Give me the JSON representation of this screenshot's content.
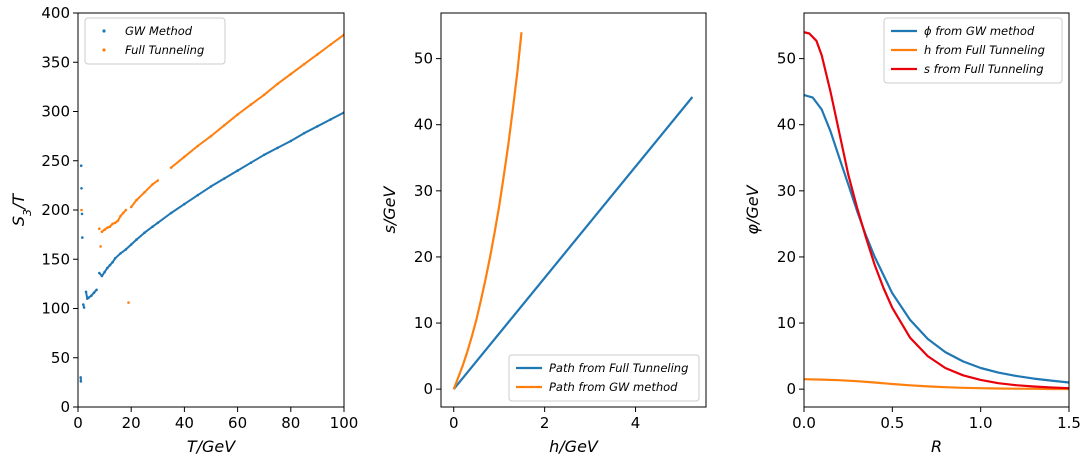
{
  "chart_data": [
    {
      "type": "scatter",
      "xlabel": "T/GeV",
      "ylabel": "S_3/T",
      "xlim": [
        0,
        100
      ],
      "ylim": [
        0,
        400
      ],
      "xticks": [
        0,
        20,
        40,
        60,
        80,
        100
      ],
      "yticks": [
        0,
        50,
        100,
        150,
        200,
        250,
        300,
        350,
        400
      ],
      "grid": false,
      "legend_position": "top-left",
      "series": [
        {
          "name": "GW Method",
          "color": "#1f77b4",
          "points": [
            [
              1.0,
              30
            ],
            [
              1.1,
              26
            ],
            [
              1.2,
              245
            ],
            [
              1.3,
              222
            ],
            [
              1.5,
              196
            ],
            [
              1.6,
              172
            ],
            [
              2.0,
              104
            ],
            [
              2.3,
              101
            ],
            [
              3.0,
              117
            ],
            [
              3.5,
              110
            ],
            [
              4.0,
              111
            ],
            [
              5.0,
              113
            ],
            [
              6.0,
              116
            ],
            [
              7.0,
              119
            ],
            [
              8.0,
              136
            ],
            [
              9.0,
              133
            ],
            [
              10.0,
              137
            ],
            [
              11.0,
              141
            ],
            [
              12.0,
              144
            ],
            [
              13.0,
              147
            ],
            [
              14.0,
              151
            ],
            [
              16.0,
              156
            ],
            [
              18.0,
              160
            ],
            [
              20.0,
              165
            ],
            [
              22.0,
              170
            ],
            [
              25.0,
              177
            ],
            [
              28.0,
              183
            ],
            [
              30.0,
              187
            ],
            [
              35.0,
              197
            ],
            [
              40.0,
              206
            ],
            [
              45.0,
              215
            ],
            [
              50.0,
              224
            ],
            [
              55.0,
              232
            ],
            [
              60.0,
              240
            ],
            [
              65.0,
              248
            ],
            [
              70.0,
              256
            ],
            [
              75.0,
              263
            ],
            [
              80.0,
              270
            ],
            [
              85.0,
              278
            ],
            [
              90.0,
              285
            ],
            [
              95.0,
              292
            ],
            [
              100.0,
              299
            ]
          ]
        },
        {
          "name": "Full Tunneling",
          "color": "#ff7f0e",
          "points": [
            [
              1.3,
              200
            ],
            [
              8.0,
              181
            ],
            [
              8.5,
              163
            ],
            [
              9.0,
              178
            ],
            [
              10.0,
              180
            ],
            [
              11.0,
              182
            ],
            [
              12.0,
              183
            ],
            [
              13.0,
              186
            ],
            [
              14.0,
              187
            ],
            [
              15.0,
              189
            ],
            [
              16.0,
              194
            ],
            [
              17.0,
              197
            ],
            [
              18.0,
              200
            ],
            [
              19.0,
              106
            ],
            [
              20.0,
              203
            ],
            [
              22.0,
              210
            ],
            [
              25.0,
              218
            ],
            [
              28.0,
              226
            ],
            [
              30.0,
              230
            ],
            [
              35.0,
              243
            ],
            [
              40.0,
              254
            ],
            [
              45.0,
              265
            ],
            [
              50.0,
              275
            ],
            [
              55.0,
              286
            ],
            [
              60.0,
              297
            ],
            [
              65.0,
              307
            ],
            [
              70.0,
              317
            ],
            [
              75.0,
              328
            ],
            [
              80.0,
              338
            ],
            [
              85.0,
              348
            ],
            [
              90.0,
              358
            ],
            [
              95.0,
              368
            ],
            [
              100.0,
              378
            ]
          ]
        }
      ]
    },
    {
      "type": "line",
      "xlabel": "h/GeV",
      "ylabel": "s/GeV",
      "xlim": [
        -0.28,
        5.55
      ],
      "ylim": [
        -2.7,
        56.9
      ],
      "xticks": [
        0,
        2,
        4
      ],
      "yticks": [
        0,
        10,
        20,
        30,
        40,
        50
      ],
      "grid": false,
      "legend_position": "bottom-right",
      "series": [
        {
          "name": "Path from Full Tunneling",
          "color": "#1f77b4",
          "points": [
            [
              0,
              0
            ],
            [
              5.25,
              44.2
            ]
          ]
        },
        {
          "name": "Path from GW method",
          "color": "#ff7f0e",
          "points": [
            [
              0,
              0
            ],
            [
              0.1,
              1.8
            ],
            [
              0.2,
              3.6
            ],
            [
              0.3,
              5.7
            ],
            [
              0.4,
              8.0
            ],
            [
              0.5,
              10.6
            ],
            [
              0.6,
              13.5
            ],
            [
              0.7,
              16.6
            ],
            [
              0.8,
              20.0
            ],
            [
              0.9,
              23.7
            ],
            [
              1.0,
              27.7
            ],
            [
              1.1,
              32.2
            ],
            [
              1.2,
              37.0
            ],
            [
              1.3,
              42.3
            ],
            [
              1.4,
              48.0
            ],
            [
              1.49,
              54.0
            ]
          ]
        }
      ]
    },
    {
      "type": "line",
      "xlabel": "R",
      "ylabel": "φ/GeV",
      "xlim": [
        0,
        1.5
      ],
      "ylim": [
        -2.7,
        56.9
      ],
      "xticks": [
        0.0,
        0.5,
        1.0,
        1.5
      ],
      "yticks": [
        0,
        10,
        20,
        30,
        40,
        50
      ],
      "grid": false,
      "legend_position": "top-right",
      "series": [
        {
          "name": "ϕ from GW method",
          "color": "#1f77b4",
          "points": [
            [
              0,
              44.5
            ],
            [
              0.05,
              44.1
            ],
            [
              0.1,
              42.3
            ],
            [
              0.15,
              39.0
            ],
            [
              0.2,
              35.0
            ],
            [
              0.25,
              31.0
            ],
            [
              0.3,
              27.0
            ],
            [
              0.35,
              23.3
            ],
            [
              0.4,
              20.0
            ],
            [
              0.5,
              14.5
            ],
            [
              0.6,
              10.5
            ],
            [
              0.7,
              7.6
            ],
            [
              0.8,
              5.6
            ],
            [
              0.9,
              4.2
            ],
            [
              1.0,
              3.2
            ],
            [
              1.1,
              2.5
            ],
            [
              1.2,
              2.0
            ],
            [
              1.3,
              1.6
            ],
            [
              1.4,
              1.3
            ],
            [
              1.5,
              1.0
            ]
          ]
        },
        {
          "name": "h from Full Tunneling",
          "color": "#ff7f0e",
          "points": [
            [
              0,
              1.5
            ],
            [
              0.1,
              1.45
            ],
            [
              0.2,
              1.35
            ],
            [
              0.3,
              1.2
            ],
            [
              0.4,
              1.0
            ],
            [
              0.5,
              0.78
            ],
            [
              0.6,
              0.58
            ],
            [
              0.7,
              0.42
            ],
            [
              0.8,
              0.3
            ],
            [
              0.9,
              0.21
            ],
            [
              1.0,
              0.15
            ],
            [
              1.1,
              0.1
            ],
            [
              1.2,
              0.07
            ],
            [
              1.3,
              0.05
            ],
            [
              1.4,
              0.03
            ],
            [
              1.5,
              0.02
            ]
          ]
        },
        {
          "name": "s from Full Tunneling",
          "color": "#e8000b",
          "points": [
            [
              0,
              54.0
            ],
            [
              0.03,
              53.8
            ],
            [
              0.07,
              52.7
            ],
            [
              0.1,
              50.5
            ],
            [
              0.15,
              45.0
            ],
            [
              0.2,
              38.8
            ],
            [
              0.25,
              32.5
            ],
            [
              0.3,
              27.5
            ],
            [
              0.35,
              23.0
            ],
            [
              0.4,
              18.8
            ],
            [
              0.45,
              15.3
            ],
            [
              0.5,
              12.3
            ],
            [
              0.6,
              7.8
            ],
            [
              0.7,
              5.0
            ],
            [
              0.8,
              3.2
            ],
            [
              0.9,
              2.1
            ],
            [
              1.0,
              1.4
            ],
            [
              1.1,
              0.9
            ],
            [
              1.2,
              0.6
            ],
            [
              1.3,
              0.4
            ],
            [
              1.4,
              0.25
            ],
            [
              1.5,
              0.15
            ]
          ]
        }
      ]
    }
  ]
}
